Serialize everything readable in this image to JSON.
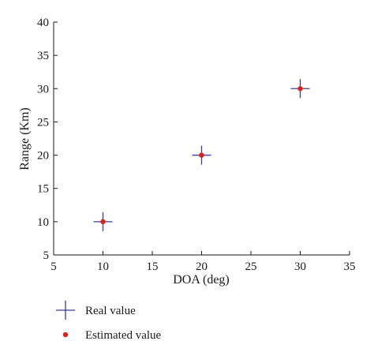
{
  "chart_data": {
    "type": "scatter",
    "xlabel": "DOA (deg)",
    "ylabel": "Range (Km)",
    "xlim": [
      5,
      35
    ],
    "ylim": [
      5,
      40
    ],
    "xticks": [
      5,
      10,
      15,
      20,
      25,
      30,
      35
    ],
    "yticks": [
      5,
      10,
      15,
      20,
      25,
      30,
      35,
      40
    ],
    "grid": false,
    "legend_position": "bottom-left, below plot",
    "series": [
      {
        "name": "Real value",
        "marker": "plus",
        "color": "#3b3b9b",
        "points": [
          {
            "x": 10,
            "y": 10
          },
          {
            "x": 20,
            "y": 20
          },
          {
            "x": 30,
            "y": 30
          }
        ]
      },
      {
        "name": "Estimated value",
        "marker": "dot",
        "color": "#e0201b",
        "points": [
          {
            "x": 10,
            "y": 10
          },
          {
            "x": 20,
            "y": 20
          },
          {
            "x": 30,
            "y": 30
          }
        ]
      }
    ]
  }
}
